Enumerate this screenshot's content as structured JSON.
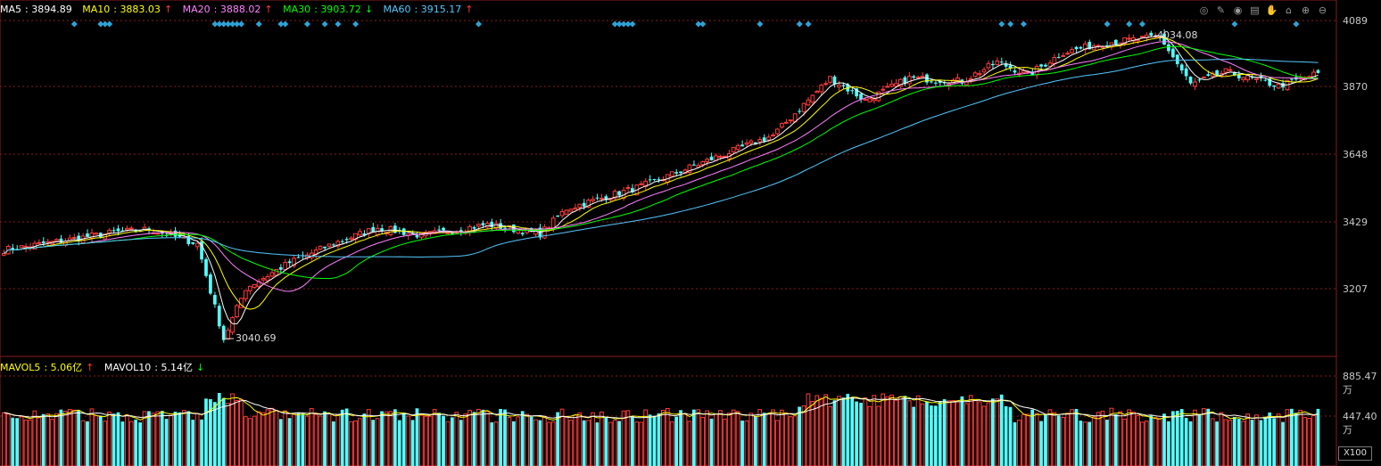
{
  "price_legend": {
    "ma5": {
      "label": "MA5",
      "value": "3894.89"
    },
    "ma10": {
      "label": "MA10",
      "value": "3883.03",
      "dir": "↑"
    },
    "ma20": {
      "label": "MA20",
      "value": "3888.02",
      "dir": "↑"
    },
    "ma30": {
      "label": "MA30",
      "value": "3903.72",
      "dir": "↓"
    },
    "ma60": {
      "label": "MA60",
      "value": "3915.17",
      "dir": "↑"
    }
  },
  "volume_legend": {
    "mavol5": {
      "label": "MAVOL5",
      "value": "5.06亿",
      "dir": "↑"
    },
    "mavol10": {
      "label": "MAVOL10",
      "value": "5.14亿",
      "dir": "↓"
    }
  },
  "price_axis_labels": [
    "4089",
    "3870",
    "3648",
    "3429",
    "3207"
  ],
  "volume_axis_labels": [
    "885.47万",
    "447.40万"
  ],
  "zoom_label": "X100",
  "callouts": {
    "high": "4034.08",
    "low": "3040.69"
  },
  "toolbar_icons": [
    "target-icon",
    "pen-icon",
    "eye-icon",
    "save-icon",
    "hand-icon",
    "lock-icon",
    "zoom-in-icon",
    "zoom-out-icon"
  ],
  "colors": {
    "up": "#ff3b3b",
    "down": "#54ffff",
    "ma5": "#ffffff",
    "ma10": "#ffff00",
    "ma20": "#ff80ff",
    "ma30": "#00ff00",
    "ma60": "#54c8ff",
    "grid": "#8a1c1c",
    "marker": "#2ea3d6"
  },
  "chart_data": {
    "type": "candlestick",
    "price_range": [
      3000,
      4120
    ],
    "volume_range": [
      0,
      950
    ],
    "volume_unit": "万",
    "key_points": [
      {
        "i": 0,
        "p": 3340
      },
      {
        "i": 25,
        "p": 3395
      },
      {
        "i": 33,
        "p": 3405
      },
      {
        "i": 44,
        "p": 3360
      },
      {
        "i": 50,
        "p": 3060
      },
      {
        "i": 55,
        "p": 3220
      },
      {
        "i": 65,
        "p": 3300
      },
      {
        "i": 75,
        "p": 3360
      },
      {
        "i": 85,
        "p": 3410
      },
      {
        "i": 95,
        "p": 3385
      },
      {
        "i": 110,
        "p": 3420
      },
      {
        "i": 122,
        "p": 3390
      },
      {
        "i": 128,
        "p": 3470
      },
      {
        "i": 145,
        "p": 3540
      },
      {
        "i": 160,
        "p": 3620
      },
      {
        "i": 175,
        "p": 3700
      },
      {
        "i": 188,
        "p": 3880
      },
      {
        "i": 196,
        "p": 3810
      },
      {
        "i": 206,
        "p": 3880
      },
      {
        "i": 218,
        "p": 3870
      },
      {
        "i": 226,
        "p": 3930
      },
      {
        "i": 233,
        "p": 3890
      },
      {
        "i": 241,
        "p": 3960
      },
      {
        "i": 250,
        "p": 3990
      },
      {
        "i": 263,
        "p": 4010
      },
      {
        "i": 270,
        "p": 3860
      },
      {
        "i": 278,
        "p": 3900
      },
      {
        "i": 290,
        "p": 3855
      },
      {
        "i": 299,
        "p": 3895
      }
    ],
    "high_marker": {
      "index": 263,
      "value": 4034.08
    },
    "low_marker": {
      "index": 50,
      "value": 3040.69
    },
    "ma_periods": [
      5,
      10,
      20,
      30,
      60
    ]
  }
}
